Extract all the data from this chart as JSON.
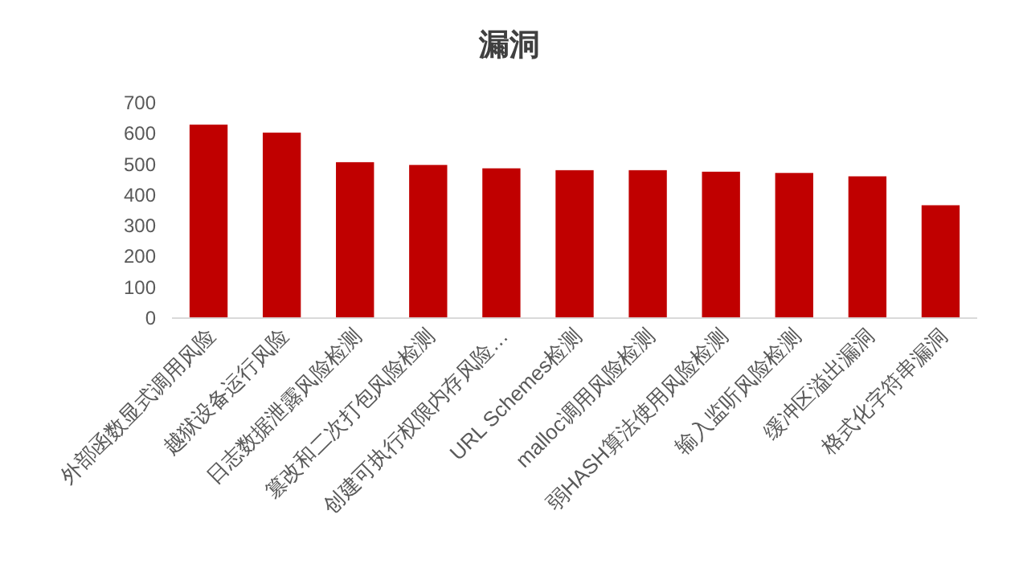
{
  "chart_data": {
    "type": "bar",
    "title": "漏洞",
    "categories": [
      "外部函数显式调用风险",
      "越狱设备运行风险",
      "日志数据泄露风险检测",
      "篡改和二次打包风险检测",
      "创建可执行权限内存风险…",
      "URL Schemes检测",
      "malloc调用风险检测",
      "弱HASH算法使用风险检测",
      "输入监听风险检测",
      "缓冲区溢出漏洞",
      "格式化字符串漏洞"
    ],
    "values": [
      629,
      603,
      507,
      498,
      487,
      481,
      481,
      476,
      472,
      461,
      367
    ],
    "color": "#c00000",
    "ylim": [
      0,
      700
    ],
    "yticks": [
      0,
      100,
      200,
      300,
      400,
      500,
      600,
      700
    ],
    "grid": false
  }
}
